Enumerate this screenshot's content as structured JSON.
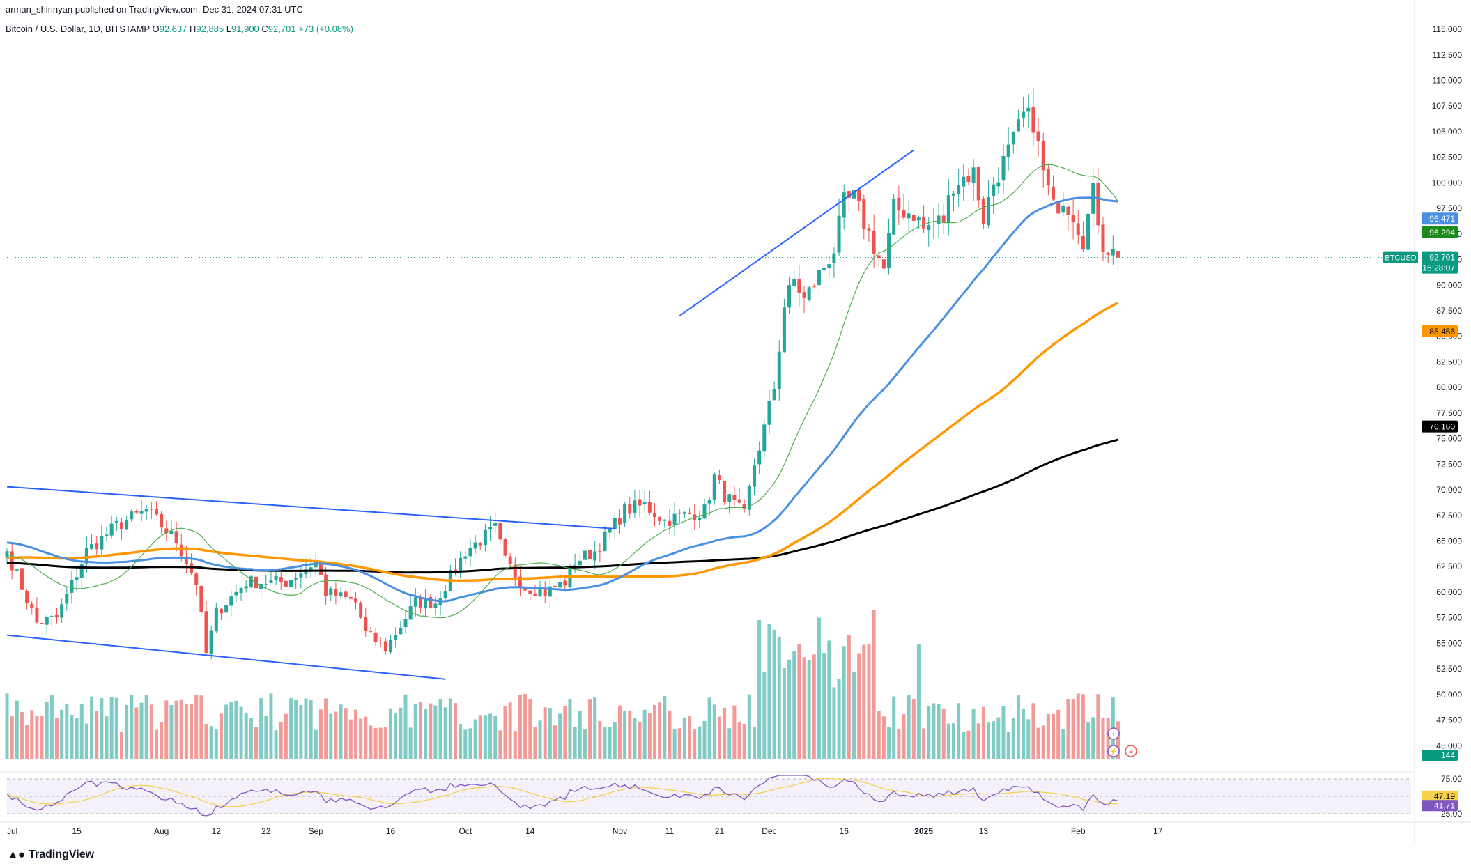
{
  "header": {
    "published": "arman_shirinyan published on TradingView.com, Dec 31, 2024 07:31 UTC",
    "symbol": "Bitcoin / U.S. Dollar, 1D, BITSTAMP",
    "ohlc_o_label": "O",
    "ohlc_o": "92,637",
    "ohlc_h_label": "H",
    "ohlc_h": "92,885",
    "ohlc_l_label": "L",
    "ohlc_l": "91,900",
    "ohlc_c_label": "C",
    "ohlc_c": "92,701",
    "change": "+73 (+0.08%)"
  },
  "footer": {
    "brand": "TradingView"
  },
  "colors": {
    "up": "#26a69a",
    "down": "#ef5350",
    "vol_up": "#80cbc4",
    "vol_down": "#f29a98",
    "ma20": "#4caf50",
    "ma50": "#4a90e2",
    "ma100": "#ff9800",
    "ma200": "#000000",
    "trend": "#2962ff",
    "rsi": "#7e57c2",
    "rsi_ma": "#f5d04a",
    "last": "#089981"
  },
  "chart_data": {
    "type": "candlestick",
    "y_axis": {
      "range": [
        44000,
        116500
      ],
      "ticks": [
        "115,000",
        "112,500",
        "110,000",
        "107,500",
        "105,000",
        "102,500",
        "100,000",
        "97,500",
        "95,000",
        "92,500",
        "90,000",
        "87,500",
        "85,000",
        "82,500",
        "80,000",
        "77,500",
        "75,000",
        "72,500",
        "70,000",
        "67,500",
        "65,000",
        "62,500",
        "60,000",
        "57,500",
        "55,000",
        "52,500",
        "50,000",
        "47,500",
        "45,000"
      ]
    },
    "x_axis": {
      "labels": [
        "Jul",
        "15",
        "Aug",
        "12",
        "22",
        "Sep",
        "16",
        "Oct",
        "14",
        "Nov",
        "11",
        "21",
        "Dec",
        "16",
        "2025",
        "13",
        "Feb",
        "17"
      ]
    },
    "price_tags": {
      "ma50": "96,471",
      "ma20": "96,294",
      "symbol": "BTCUSD",
      "last": "92,701",
      "countdown": "16:28:07",
      "ma100": "85,456",
      "ma200": "76,160",
      "volume": "144"
    },
    "anchors": [
      [
        0,
        64000
      ],
      [
        6,
        57000
      ],
      [
        10,
        57500
      ],
      [
        16,
        64000
      ],
      [
        22,
        66500
      ],
      [
        28,
        68000
      ],
      [
        32,
        66000
      ],
      [
        34,
        65000
      ],
      [
        38,
        61000
      ],
      [
        40,
        54000
      ],
      [
        42,
        58000
      ],
      [
        48,
        61000
      ],
      [
        56,
        61000
      ],
      [
        62,
        63000
      ],
      [
        64,
        60000
      ],
      [
        70,
        59000
      ],
      [
        72,
        56000
      ],
      [
        76,
        54500
      ],
      [
        82,
        59000
      ],
      [
        86,
        59000
      ],
      [
        92,
        64000
      ],
      [
        98,
        66200
      ],
      [
        100,
        63000
      ],
      [
        104,
        60500
      ],
      [
        108,
        60000
      ],
      [
        112,
        61000
      ],
      [
        114,
        63000
      ],
      [
        118,
        64000
      ],
      [
        124,
        68000
      ],
      [
        128,
        68500
      ],
      [
        132,
        67000
      ],
      [
        136,
        67500
      ],
      [
        140,
        68000
      ],
      [
        142,
        71200
      ],
      [
        144,
        69500
      ],
      [
        148,
        67500
      ],
      [
        150,
        72500
      ],
      [
        152,
        76000
      ],
      [
        154,
        80000
      ],
      [
        156,
        88000
      ],
      [
        158,
        90500
      ],
      [
        160,
        88500
      ],
      [
        166,
        93500
      ],
      [
        168,
        98000
      ],
      [
        170,
        98500
      ],
      [
        176,
        91500
      ],
      [
        178,
        97500
      ],
      [
        182,
        97000
      ],
      [
        184,
        95500
      ],
      [
        188,
        96500
      ],
      [
        190,
        100000
      ],
      [
        194,
        101000
      ],
      [
        196,
        96500
      ],
      [
        198,
        100000
      ],
      [
        202,
        104000
      ],
      [
        204,
        106500
      ],
      [
        206,
        106000
      ],
      [
        208,
        101000
      ],
      [
        210,
        97500
      ],
      [
        212,
        98500
      ],
      [
        214,
        97000
      ],
      [
        216,
        94500
      ],
      [
        218,
        99000
      ],
      [
        220,
        94000
      ],
      [
        223,
        92700
      ]
    ],
    "ma_periods": {
      "ma20": 20,
      "ma50": 50,
      "ma100": 100,
      "ma200": 200
    },
    "rsi": {
      "ticks": [
        "75.00",
        "25.00"
      ],
      "value": "41.71",
      "ma": "47.19",
      "range": [
        25,
        75
      ]
    },
    "trendlines": [
      {
        "name": "channel-upper",
        "from": [
          "Jul 1",
          70300
        ],
        "to": [
          "Oct 31",
          66200
        ]
      },
      {
        "name": "channel-lower",
        "from": [
          "Jul 1",
          55800
        ],
        "to": [
          "Sep 27",
          51500
        ]
      },
      {
        "name": "rising-support",
        "from": [
          "Nov 13",
          87000
        ],
        "to": [
          "Dec 30",
          103200
        ]
      }
    ]
  }
}
